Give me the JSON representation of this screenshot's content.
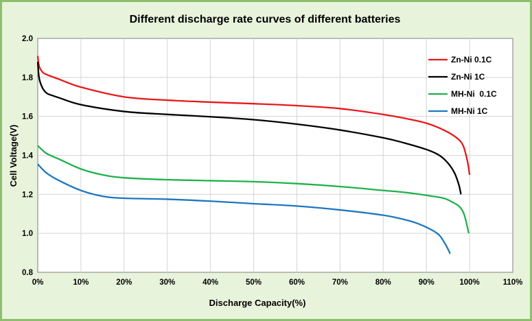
{
  "chart_data": {
    "type": "line",
    "title": "Different discharge rate curves of different batteries",
    "xlabel": "Discharge Capacity(%)",
    "ylabel": "Cell Voltage(V)",
    "xlim": [
      0,
      110
    ],
    "ylim": [
      0.8,
      2.0
    ],
    "x_ticks": [
      "0%",
      "10%",
      "20%",
      "30%",
      "40%",
      "50%",
      "60%",
      "70%",
      "80%",
      "90%",
      "100%",
      "110%"
    ],
    "y_ticks": [
      "0.8",
      "1.0",
      "1.2",
      "1.4",
      "1.6",
      "1.8",
      "2.0"
    ],
    "grid": true,
    "legend_position": "top-right",
    "series": [
      {
        "name": "Zn-Ni 0.1C",
        "color": "#e8181c",
        "x": [
          0,
          0.3,
          1,
          2,
          5,
          10,
          20,
          30,
          40,
          50,
          60,
          70,
          80,
          85,
          90,
          94,
          97,
          98.5,
          99.5,
          100
        ],
        "y": [
          1.91,
          1.86,
          1.83,
          1.815,
          1.79,
          1.75,
          1.7,
          1.683,
          1.673,
          1.665,
          1.655,
          1.64,
          1.61,
          1.59,
          1.565,
          1.53,
          1.49,
          1.45,
          1.37,
          1.3
        ]
      },
      {
        "name": "Zn-Ni 1C",
        "color": "#000000",
        "x": [
          0,
          0.3,
          1,
          2,
          3,
          5,
          10,
          20,
          30,
          40,
          50,
          60,
          70,
          80,
          85,
          90,
          93,
          95,
          96.5,
          97.5,
          98
        ],
        "y": [
          1.88,
          1.8,
          1.75,
          1.72,
          1.71,
          1.695,
          1.66,
          1.625,
          1.61,
          1.598,
          1.583,
          1.56,
          1.53,
          1.49,
          1.463,
          1.43,
          1.4,
          1.36,
          1.31,
          1.25,
          1.2
        ]
      },
      {
        "name": "MH-Ni  0.1C",
        "color": "#1fb14b",
        "x": [
          0,
          2,
          5,
          10,
          15,
          20,
          30,
          40,
          50,
          60,
          70,
          80,
          85,
          90,
          94,
          96,
          97.5,
          98.5,
          99.2,
          99.8
        ],
        "y": [
          1.45,
          1.41,
          1.38,
          1.33,
          1.3,
          1.285,
          1.275,
          1.27,
          1.265,
          1.255,
          1.24,
          1.22,
          1.21,
          1.195,
          1.18,
          1.16,
          1.14,
          1.11,
          1.06,
          1.0
        ]
      },
      {
        "name": "MH-Ni 1C",
        "color": "#1c77c0",
        "x": [
          0,
          2,
          5,
          10,
          15,
          20,
          30,
          40,
          50,
          60,
          70,
          80,
          85,
          88,
          91,
          93,
          94.5,
          95.5
        ],
        "y": [
          1.355,
          1.31,
          1.27,
          1.22,
          1.19,
          1.18,
          1.175,
          1.165,
          1.152,
          1.14,
          1.12,
          1.093,
          1.07,
          1.05,
          1.02,
          0.99,
          0.94,
          0.895
        ]
      }
    ]
  }
}
